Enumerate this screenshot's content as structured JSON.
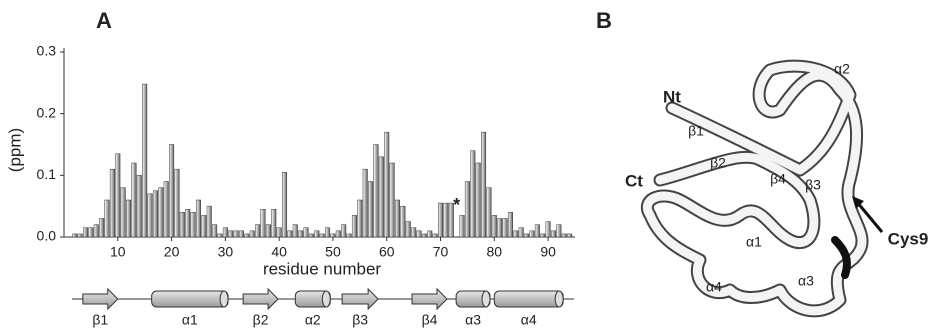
{
  "chart_data": {
    "type": "bar",
    "panel_label": "A",
    "ylabel": "(ppm)",
    "xlabel": "residue number",
    "x": [
      1,
      2,
      3,
      4,
      5,
      6,
      7,
      8,
      9,
      10,
      11,
      12,
      13,
      14,
      15,
      16,
      17,
      18,
      19,
      20,
      21,
      22,
      23,
      24,
      25,
      26,
      27,
      28,
      29,
      30,
      31,
      32,
      33,
      34,
      35,
      36,
      37,
      38,
      39,
      40,
      41,
      42,
      43,
      44,
      45,
      46,
      47,
      48,
      49,
      50,
      51,
      52,
      53,
      54,
      55,
      56,
      57,
      58,
      59,
      60,
      61,
      62,
      63,
      64,
      65,
      66,
      67,
      68,
      69,
      70,
      71,
      72,
      73,
      74,
      75,
      76,
      77,
      78,
      79,
      80,
      81,
      82,
      83,
      84,
      85,
      86,
      87,
      88,
      89,
      90,
      91,
      92,
      93,
      94
    ],
    "values": [
      null,
      0.005,
      0.005,
      0.015,
      0.015,
      0.02,
      0.03,
      0.06,
      0.11,
      0.135,
      0.08,
      0.06,
      0.12,
      0.1,
      0.248,
      0.07,
      0.075,
      0.08,
      0.09,
      0.15,
      0.11,
      0.04,
      0.045,
      0.04,
      0.06,
      0.035,
      0.05,
      0.02,
      0.005,
      0.015,
      0.01,
      0.01,
      0.01,
      0.005,
      0.01,
      0.02,
      0.045,
      0.02,
      0.045,
      0.015,
      0.105,
      0.01,
      0.02,
      0.01,
      0.015,
      0.005,
      0.01,
      0.005,
      0.015,
      0.005,
      0.01,
      0.02,
      0.005,
      0.035,
      0.06,
      0.11,
      0.09,
      0.15,
      0.13,
      0.17,
      0.12,
      0.06,
      0.05,
      0.025,
      0.015,
      0.01,
      0.005,
      0.01,
      0.005,
      0.055,
      0.055,
      0.055,
      null,
      0.035,
      0.09,
      0.14,
      0.12,
      0.17,
      0.08,
      0.035,
      0.03,
      0.03,
      0.04,
      0.01,
      0.015,
      0.005,
      0.01,
      0.02,
      0.005,
      0.025,
      0.01,
      0.02,
      0.005,
      0.005
    ],
    "xlim": [
      0,
      95
    ],
    "xticks": [
      10,
      20,
      30,
      40,
      50,
      60,
      70,
      80,
      90
    ],
    "ylim": [
      0,
      0.3
    ],
    "yticks": [
      {
        "value": 0,
        "label": "0.0"
      },
      0.1,
      0.2,
      0.3
    ],
    "annotations": [
      {
        "text": "*",
        "x": 73
      }
    ],
    "secondary_structure": [
      {
        "label": "β1",
        "type": "strand",
        "start": 3.5,
        "end": 10
      },
      {
        "label": "α1",
        "type": "helix",
        "start": 16.3,
        "end": 30.5
      },
      {
        "label": "β2",
        "type": "strand",
        "start": 33.3,
        "end": 39.8
      },
      {
        "label": "α2",
        "type": "helix",
        "start": 43,
        "end": 49.5
      },
      {
        "label": "β3",
        "type": "strand",
        "start": 51.7,
        "end": 58.4
      },
      {
        "label": "β4",
        "type": "strand",
        "start": 64.7,
        "end": 71.2
      },
      {
        "label": "α3",
        "type": "helix",
        "start": 72.9,
        "end": 79.2
      },
      {
        "label": "α4",
        "type": "helix",
        "start": 80,
        "end": 92.8
      }
    ]
  },
  "structure": {
    "panel_label": "B",
    "labels": [
      "Nt",
      "Ct",
      "β1",
      "β2",
      "β3",
      "β4",
      "α1",
      "α2",
      "α3",
      "α4",
      "Cys9"
    ]
  }
}
